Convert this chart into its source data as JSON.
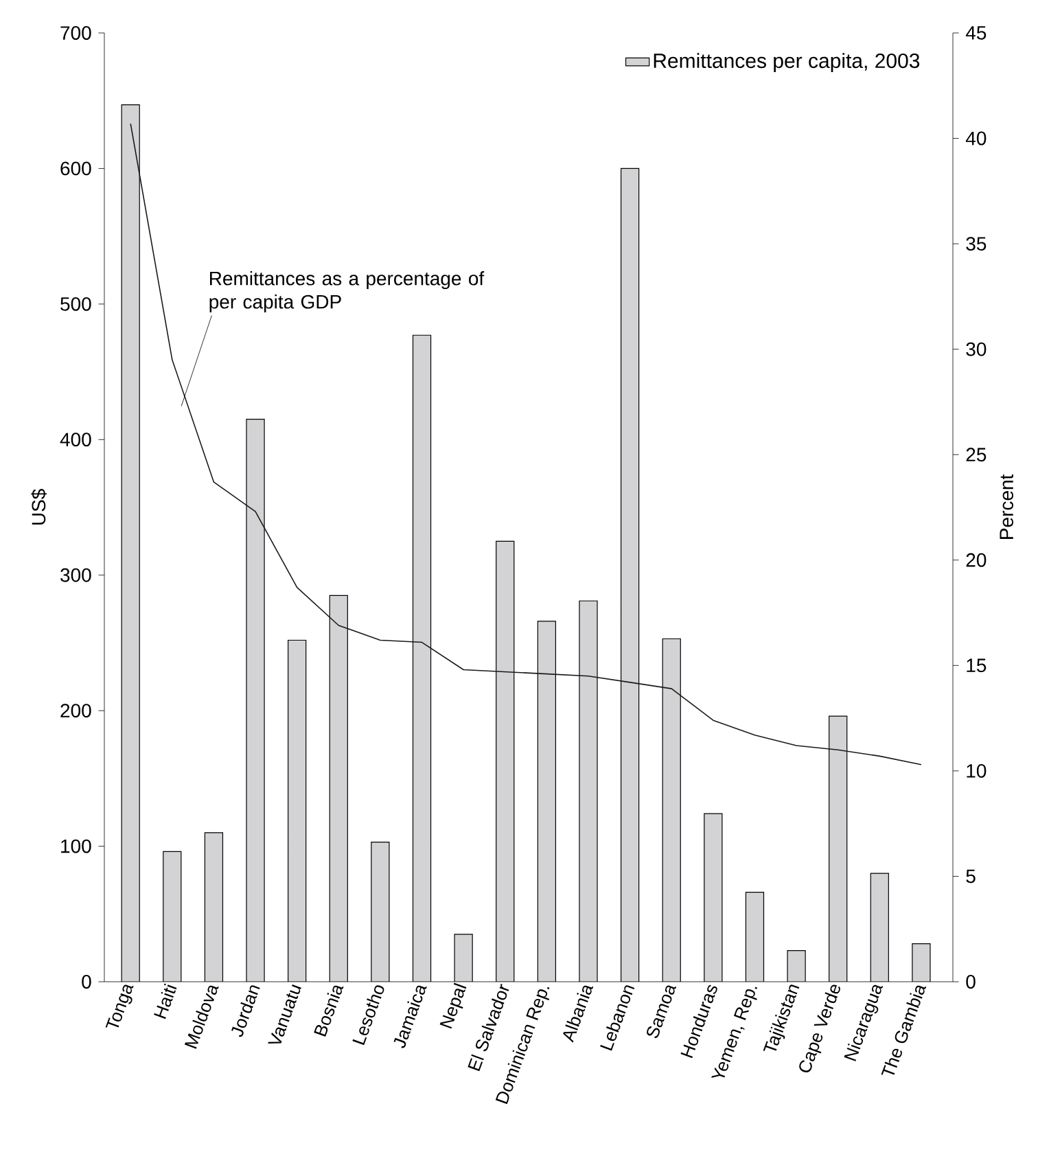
{
  "chart_data": {
    "type": "bar",
    "categories": [
      "Tonga",
      "Haiti",
      "Moldova",
      "Jordan",
      "Vanuatu",
      "Bosnia",
      "Lesotho",
      "Jamaica",
      "Nepal",
      "El Salvador",
      "Dominican Rep.",
      "Albania",
      "Lebanon",
      "Samoa",
      "Honduras",
      "Yemen, Rep.",
      "Tajikistan",
      "Cape Verde",
      "Nicaragua",
      "The Gambia"
    ],
    "series": [
      {
        "name": "Remittances per capita, 2003",
        "color": "#d3d3d5",
        "values": [
          647,
          96,
          110,
          415,
          252,
          285,
          103,
          477,
          35,
          325,
          266,
          281,
          600,
          253,
          124,
          66,
          23,
          196,
          80,
          28
        ]
      },
      {
        "name": "Remittances as a percentage of per capita GDP",
        "type": "line",
        "axis": "y2",
        "color": "#1a1a1a",
        "values": [
          40.7,
          29.5,
          23.7,
          22.3,
          18.7,
          16.9,
          16.2,
          16.1,
          14.8,
          14.7,
          14.6,
          14.5,
          14.2,
          13.9,
          12.4,
          11.7,
          11.2,
          11.0,
          10.7,
          10.3
        ]
      }
    ],
    "ylabel": "US$",
    "y2label": "Percent",
    "ylim": [
      0,
      700
    ],
    "yticks": [
      0,
      100,
      200,
      300,
      400,
      500,
      600,
      700
    ],
    "y2lim": [
      0,
      45
    ],
    "y2ticks": [
      0,
      5,
      10,
      15,
      20,
      25,
      30,
      35,
      40,
      45
    ],
    "legend": "top right"
  }
}
